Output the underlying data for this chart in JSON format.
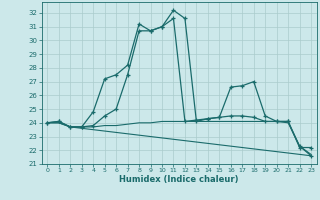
{
  "xlabel": "Humidex (Indice chaleur)",
  "background_color": "#cce8ea",
  "grid_color": "#aacccc",
  "line_color": "#1a6b6b",
  "xlim": [
    -0.5,
    23.5
  ],
  "ylim": [
    21,
    32.8
  ],
  "xticks": [
    0,
    1,
    2,
    3,
    4,
    5,
    6,
    7,
    8,
    9,
    10,
    11,
    12,
    13,
    14,
    15,
    16,
    17,
    18,
    19,
    20,
    21,
    22,
    23
  ],
  "yticks": [
    21,
    22,
    23,
    24,
    25,
    26,
    27,
    28,
    29,
    30,
    31,
    32
  ],
  "series1_x": [
    0,
    1,
    2,
    3,
    4,
    5,
    6,
    7,
    8,
    9,
    10,
    11,
    12,
    13,
    14,
    15,
    16,
    17,
    18,
    19,
    20,
    21,
    22,
    23
  ],
  "series1_y": [
    24.0,
    24.1,
    23.7,
    23.7,
    24.8,
    27.2,
    27.5,
    28.2,
    31.2,
    30.7,
    31.0,
    32.2,
    31.6,
    24.1,
    24.3,
    24.4,
    26.6,
    26.7,
    27.0,
    24.5,
    24.1,
    24.1,
    22.2,
    22.2
  ],
  "series2_x": [
    0,
    1,
    2,
    3,
    4,
    5,
    6,
    7,
    8,
    9,
    10,
    11,
    12,
    13,
    14,
    15,
    16,
    17,
    18,
    19,
    20,
    21,
    22,
    23
  ],
  "series2_y": [
    24.0,
    24.1,
    23.7,
    23.7,
    23.8,
    24.5,
    25.0,
    27.5,
    30.7,
    30.7,
    31.0,
    31.6,
    24.1,
    24.2,
    24.3,
    24.4,
    24.5,
    24.5,
    24.4,
    24.1,
    24.1,
    24.1,
    22.3,
    21.6
  ],
  "series3_x": [
    0,
    1,
    2,
    3,
    4,
    5,
    6,
    7,
    8,
    9,
    10,
    11,
    12,
    13,
    14,
    15,
    16,
    17,
    18,
    19,
    20,
    21,
    22,
    23
  ],
  "series3_y": [
    24.0,
    24.0,
    23.7,
    23.7,
    23.7,
    23.8,
    23.8,
    23.9,
    24.0,
    24.0,
    24.1,
    24.1,
    24.1,
    24.1,
    24.1,
    24.1,
    24.1,
    24.1,
    24.1,
    24.1,
    24.1,
    24.0,
    22.3,
    21.7
  ],
  "series4_x": [
    0,
    1,
    2,
    3,
    4,
    5,
    6,
    7,
    8,
    9,
    10,
    11,
    12,
    13,
    14,
    15,
    16,
    17,
    18,
    19,
    20,
    21,
    22,
    23
  ],
  "series4_y": [
    24.0,
    24.0,
    23.7,
    23.6,
    23.5,
    23.4,
    23.3,
    23.2,
    23.1,
    23.0,
    22.9,
    22.8,
    22.7,
    22.6,
    22.5,
    22.4,
    22.3,
    22.2,
    22.1,
    22.0,
    21.9,
    21.8,
    21.7,
    21.6
  ]
}
